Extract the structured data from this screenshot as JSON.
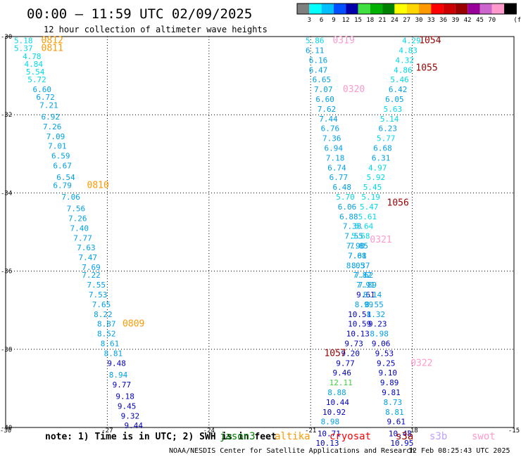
{
  "header": {
    "title": "00:00 – 11:59 UTC 02/09/2025",
    "subtitle": "12 hour collection of altimeter wave heights"
  },
  "colorbar": {
    "unit": "(ft)",
    "ticks": [
      "3",
      "6",
      "9",
      "12",
      "15",
      "18",
      "21",
      "24",
      "27",
      "30",
      "33",
      "36",
      "39",
      "42",
      "45",
      "70"
    ],
    "colors": [
      "#7f7f7f",
      "#00ffff",
      "#00bfff",
      "#0050ff",
      "#0000aa",
      "#40e040",
      "#00b000",
      "#008000",
      "#ffff00",
      "#ffd700",
      "#ff9900",
      "#ff0000",
      "#cc0000",
      "#990000",
      "#990099",
      "#cc66cc",
      "#ff99cc",
      "#000000"
    ]
  },
  "footer": {
    "note": "note:  1) Time is in UTC;  2) SWH is in feet",
    "satellites": [
      {
        "name": "jason3",
        "color": "#008000"
      },
      {
        "name": "altika",
        "color": "#ff9900"
      },
      {
        "name": "cryosat",
        "color": "#ff0000"
      },
      {
        "name": "s3a",
        "color": "#990000"
      },
      {
        "name": "s3b",
        "color": "#c0a0ff"
      },
      {
        "name": "swot",
        "color": "#ff99cc"
      }
    ],
    "credit": "NOAA/NESDIS Center for Satellite Applications and Research",
    "timestamp": "12 Feb 08:25:43 UTC 2025"
  },
  "chart_data": {
    "type": "scatter",
    "xlim": [
      -30,
      -15
    ],
    "ylim": [
      -40,
      -30
    ],
    "xticks": [
      -30,
      -27,
      -24,
      -21,
      -18,
      -15
    ],
    "yticks": [
      -30,
      -32,
      -34,
      -36,
      -38,
      -40
    ],
    "tick_labels_x": [
      "-30",
      "-27",
      "-24",
      "-21",
      "-18",
      "-15"
    ],
    "tick_labels_y": [
      "-30",
      "-32",
      "-34",
      "-36",
      "-38",
      "-40"
    ],
    "grid": true,
    "points": [
      {
        "x": -29.75,
        "y": -30.1,
        "v": "5.18"
      },
      {
        "x": -29.75,
        "y": -30.3,
        "v": "5.37"
      },
      {
        "x": -29.5,
        "y": -30.5,
        "v": "4.78"
      },
      {
        "x": -29.45,
        "y": -30.7,
        "v": "4.84"
      },
      {
        "x": -29.4,
        "y": -30.9,
        "v": "5.54"
      },
      {
        "x": -29.35,
        "y": -31.1,
        "v": "5.72"
      },
      {
        "x": -29.2,
        "y": -31.35,
        "v": "6.60"
      },
      {
        "x": -29.1,
        "y": -31.55,
        "v": "6.72"
      },
      {
        "x": -29.0,
        "y": -31.75,
        "v": "7.21"
      },
      {
        "x": -28.95,
        "y": -32.05,
        "v": "6.92"
      },
      {
        "x": -28.9,
        "y": -32.3,
        "v": "7.26"
      },
      {
        "x": -28.8,
        "y": -32.55,
        "v": "7.09"
      },
      {
        "x": -28.75,
        "y": -32.8,
        "v": "7.01"
      },
      {
        "x": -28.65,
        "y": -33.05,
        "v": "6.59"
      },
      {
        "x": -28.6,
        "y": -33.3,
        "v": "6.67"
      },
      {
        "x": -28.5,
        "y": -33.6,
        "v": "6.54"
      },
      {
        "x": -28.6,
        "y": -33.8,
        "v": "6.79"
      },
      {
        "x": -28.35,
        "y": -34.1,
        "v": "7.06"
      },
      {
        "x": -28.2,
        "y": -34.4,
        "v": "7.56"
      },
      {
        "x": -28.15,
        "y": -34.65,
        "v": "7.26"
      },
      {
        "x": -28.1,
        "y": -34.9,
        "v": "7.40"
      },
      {
        "x": -28.0,
        "y": -35.15,
        "v": "7.77"
      },
      {
        "x": -27.9,
        "y": -35.4,
        "v": "7.63"
      },
      {
        "x": -27.85,
        "y": -35.65,
        "v": "7.47"
      },
      {
        "x": -27.75,
        "y": -35.9,
        "v": "7.69"
      },
      {
        "x": -27.75,
        "y": -36.1,
        "v": "7.22"
      },
      {
        "x": -27.6,
        "y": -36.35,
        "v": "7.55"
      },
      {
        "x": -27.55,
        "y": -36.6,
        "v": "7.53"
      },
      {
        "x": -27.45,
        "y": -36.85,
        "v": "7.65"
      },
      {
        "x": -27.4,
        "y": -37.1,
        "v": "8.22"
      },
      {
        "x": -27.3,
        "y": -37.35,
        "v": "8.87"
      },
      {
        "x": -27.3,
        "y": -37.6,
        "v": "8.52"
      },
      {
        "x": -27.2,
        "y": -37.85,
        "v": "8.61"
      },
      {
        "x": -27.1,
        "y": -38.1,
        "v": "8.81"
      },
      {
        "x": -27.0,
        "y": -38.35,
        "v": "9.48"
      },
      {
        "x": -26.95,
        "y": -38.65,
        "v": "8.94"
      },
      {
        "x": -26.85,
        "y": -38.9,
        "v": "9.77"
      },
      {
        "x": -26.75,
        "y": -39.2,
        "v": "9.18"
      },
      {
        "x": -26.7,
        "y": -39.45,
        "v": "9.45"
      },
      {
        "x": -26.6,
        "y": -39.7,
        "v": "9.32"
      },
      {
        "x": -26.5,
        "y": -39.95,
        "v": "9.44"
      },
      {
        "x": -21.15,
        "y": -30.1,
        "v": "5.86"
      },
      {
        "x": -21.15,
        "y": -30.35,
        "v": "6.11"
      },
      {
        "x": -21.05,
        "y": -30.6,
        "v": "6.16"
      },
      {
        "x": -21.05,
        "y": -30.85,
        "v": "6.47"
      },
      {
        "x": -20.95,
        "y": -31.1,
        "v": "6.65"
      },
      {
        "x": -20.9,
        "y": -31.35,
        "v": "7.07"
      },
      {
        "x": -20.85,
        "y": -31.6,
        "v": "6.60"
      },
      {
        "x": -20.8,
        "y": -31.85,
        "v": "7.62"
      },
      {
        "x": -20.75,
        "y": -32.1,
        "v": "7.44"
      },
      {
        "x": -20.7,
        "y": -32.35,
        "v": "6.76"
      },
      {
        "x": -20.65,
        "y": -32.6,
        "v": "7.36"
      },
      {
        "x": -20.6,
        "y": -32.85,
        "v": "6.94"
      },
      {
        "x": -20.55,
        "y": -33.1,
        "v": "7.18"
      },
      {
        "x": -20.5,
        "y": -33.35,
        "v": "6.74"
      },
      {
        "x": -20.45,
        "y": -33.6,
        "v": "6.77"
      },
      {
        "x": -20.35,
        "y": -33.85,
        "v": "6.48"
      },
      {
        "x": -20.25,
        "y": -34.1,
        "v": "5.70"
      },
      {
        "x": -20.2,
        "y": -34.35,
        "v": "6.06"
      },
      {
        "x": -20.15,
        "y": -34.6,
        "v": "6.88"
      },
      {
        "x": -20.05,
        "y": -34.85,
        "v": "7.38"
      },
      {
        "x": -20.0,
        "y": -35.1,
        "v": "7.55"
      },
      {
        "x": -19.95,
        "y": -35.35,
        "v": "7.90"
      },
      {
        "x": -19.9,
        "y": -35.6,
        "v": "7.61"
      },
      {
        "x": -19.8,
        "y": -35.85,
        "v": "8.37"
      },
      {
        "x": -19.7,
        "y": -36.1,
        "v": "7.62"
      },
      {
        "x": -19.65,
        "y": -36.35,
        "v": "7.91"
      },
      {
        "x": -19.65,
        "y": -36.6,
        "v": "9.61"
      },
      {
        "x": -19.7,
        "y": -36.85,
        "v": "8.99"
      },
      {
        "x": -19.9,
        "y": -37.1,
        "v": "10.51"
      },
      {
        "x": -19.9,
        "y": -37.35,
        "v": "10.59"
      },
      {
        "x": -19.95,
        "y": -37.6,
        "v": "10.13"
      },
      {
        "x": -20.0,
        "y": -37.85,
        "v": "9.73"
      },
      {
        "x": -20.1,
        "y": -38.1,
        "v": "9.20"
      },
      {
        "x": -20.25,
        "y": -38.35,
        "v": "9.77"
      },
      {
        "x": -20.35,
        "y": -38.6,
        "v": "9.46"
      },
      {
        "x": -20.45,
        "y": -38.85,
        "v": "12.11"
      },
      {
        "x": -20.5,
        "y": -39.1,
        "v": "8.88"
      },
      {
        "x": -20.55,
        "y": -39.35,
        "v": "10.44"
      },
      {
        "x": -20.65,
        "y": -39.6,
        "v": "10.92"
      },
      {
        "x": -20.7,
        "y": -39.85,
        "v": "8.98"
      },
      {
        "x": -20.8,
        "y": -40.15,
        "v": "10.71"
      },
      {
        "x": -20.85,
        "y": -40.4,
        "v": "10.13"
      },
      {
        "x": -18.3,
        "y": -30.1,
        "v": "4.29"
      },
      {
        "x": -18.4,
        "y": -30.35,
        "v": "4.83"
      },
      {
        "x": -18.5,
        "y": -30.6,
        "v": "4.32"
      },
      {
        "x": -18.55,
        "y": -30.85,
        "v": "4.86"
      },
      {
        "x": -18.65,
        "y": -31.1,
        "v": "5.46"
      },
      {
        "x": -18.7,
        "y": -31.35,
        "v": "6.42"
      },
      {
        "x": -18.8,
        "y": -31.6,
        "v": "6.05"
      },
      {
        "x": -18.85,
        "y": -31.85,
        "v": "5.63"
      },
      {
        "x": -18.95,
        "y": -32.1,
        "v": "5.14"
      },
      {
        "x": -19.0,
        "y": -32.35,
        "v": "6.23"
      },
      {
        "x": -19.05,
        "y": -32.6,
        "v": "5.77"
      },
      {
        "x": -19.15,
        "y": -32.85,
        "v": "6.68"
      },
      {
        "x": -19.2,
        "y": -33.1,
        "v": "6.31"
      },
      {
        "x": -19.3,
        "y": -33.35,
        "v": "4.97"
      },
      {
        "x": -19.35,
        "y": -33.6,
        "v": "5.92"
      },
      {
        "x": -19.45,
        "y": -33.85,
        "v": "5.45"
      },
      {
        "x": -19.5,
        "y": -34.1,
        "v": "5.19"
      },
      {
        "x": -19.55,
        "y": -34.35,
        "v": "5.47"
      },
      {
        "x": -19.6,
        "y": -34.6,
        "v": "5.61"
      },
      {
        "x": -19.7,
        "y": -34.85,
        "v": "5.64"
      },
      {
        "x": -19.8,
        "y": -35.1,
        "v": "5.68"
      },
      {
        "x": -19.85,
        "y": -35.35,
        "v": "7.85"
      },
      {
        "x": -19.9,
        "y": -35.6,
        "v": "7.08"
      },
      {
        "x": -19.95,
        "y": -35.85,
        "v": "8.05"
      },
      {
        "x": -19.75,
        "y": -36.1,
        "v": "7.82"
      },
      {
        "x": -19.6,
        "y": -36.35,
        "v": "7.89"
      },
      {
        "x": -19.45,
        "y": -36.6,
        "v": "8.14"
      },
      {
        "x": -19.4,
        "y": -36.85,
        "v": "8.55"
      },
      {
        "x": -19.35,
        "y": -37.1,
        "v": "8.32"
      },
      {
        "x": -19.3,
        "y": -37.35,
        "v": "9.23"
      },
      {
        "x": -19.25,
        "y": -37.6,
        "v": "8.98"
      },
      {
        "x": -19.2,
        "y": -37.85,
        "v": "9.06"
      },
      {
        "x": -19.1,
        "y": -38.1,
        "v": "9.53"
      },
      {
        "x": -19.05,
        "y": -38.35,
        "v": "9.25"
      },
      {
        "x": -19.0,
        "y": -38.6,
        "v": "9.10"
      },
      {
        "x": -18.95,
        "y": -38.85,
        "v": "9.89"
      },
      {
        "x": -18.9,
        "y": -39.1,
        "v": "9.81"
      },
      {
        "x": -18.85,
        "y": -39.35,
        "v": "8.73"
      },
      {
        "x": -18.8,
        "y": -39.6,
        "v": "8.81"
      },
      {
        "x": -18.75,
        "y": -39.85,
        "v": "9.61"
      },
      {
        "x": -18.7,
        "y": -40.15,
        "v": "10.48"
      },
      {
        "x": -18.65,
        "y": -40.4,
        "v": "10.95"
      }
    ],
    "annotations": [
      {
        "x": -28.95,
        "y": -30.1,
        "text": "0812",
        "color": "#ff9900"
      },
      {
        "x": -28.95,
        "y": -30.3,
        "text": "0811",
        "color": "#ff9900"
      },
      {
        "x": -27.6,
        "y": -33.8,
        "text": "0810",
        "color": "#ff9900"
      },
      {
        "x": -26.55,
        "y": -37.35,
        "text": "0809",
        "color": "#ff9900"
      },
      {
        "x": -20.35,
        "y": -30.1,
        "text": "0319",
        "color": "#ff99cc"
      },
      {
        "x": -20.05,
        "y": -31.35,
        "text": "0320",
        "color": "#ff99cc"
      },
      {
        "x": -19.25,
        "y": -35.2,
        "text": "0321",
        "color": "#ff99cc"
      },
      {
        "x": -18.05,
        "y": -38.35,
        "text": "0322",
        "color": "#ff99cc"
      },
      {
        "x": -17.8,
        "y": -30.1,
        "text": "1054",
        "color": "#990000"
      },
      {
        "x": -17.9,
        "y": -30.8,
        "text": "1055",
        "color": "#990000"
      },
      {
        "x": -18.75,
        "y": -34.25,
        "text": "1056",
        "color": "#990000"
      },
      {
        "x": -20.6,
        "y": -38.1,
        "text": "1057",
        "color": "#990000"
      }
    ]
  }
}
